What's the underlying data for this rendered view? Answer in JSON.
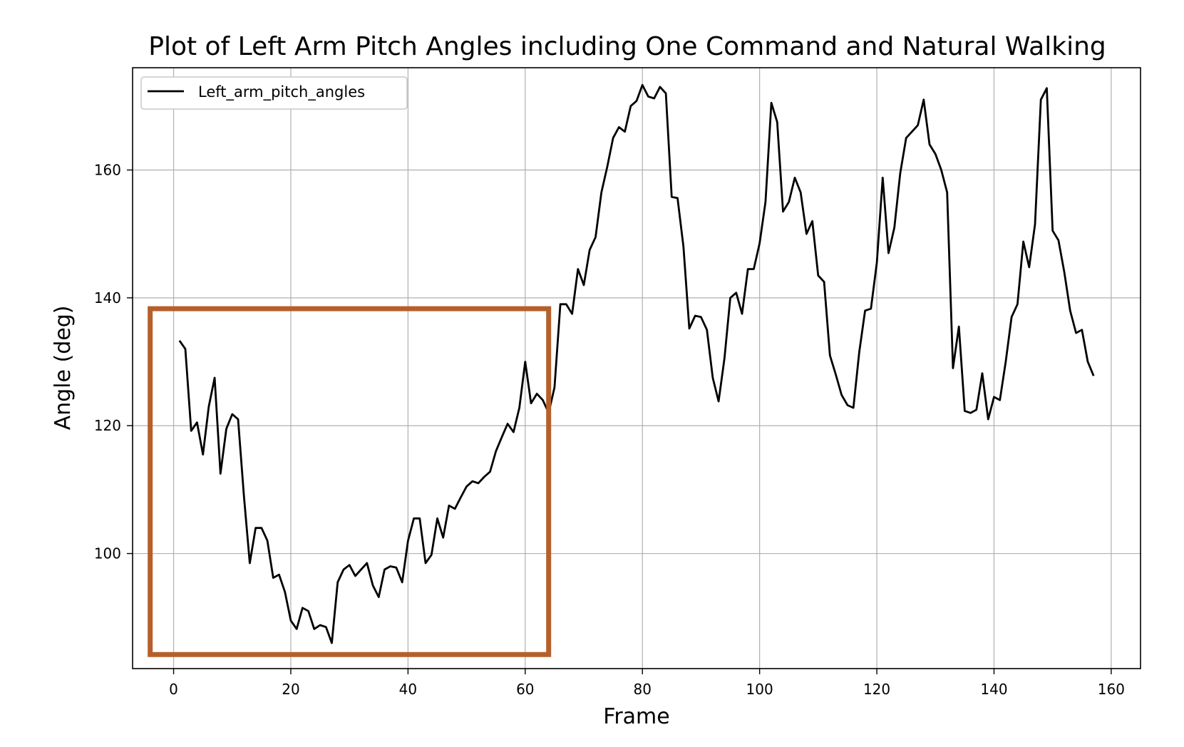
{
  "chart_data": {
    "type": "line",
    "title": "Plot of Left Arm Pitch Angles including One Command and Natural Walking",
    "xlabel": "Frame",
    "ylabel": "Angle (deg)",
    "xlim": [
      -7,
      165
    ],
    "ylim": [
      82,
      176
    ],
    "xticks": [
      0,
      20,
      40,
      60,
      80,
      100,
      120,
      140,
      160
    ],
    "yticks": [
      100,
      120,
      140,
      160
    ],
    "grid": true,
    "legend_position": "top-left",
    "series": [
      {
        "name": "Left_arm_pitch_angles",
        "color": "#000000",
        "x": [
          1,
          2,
          3,
          4,
          5,
          6,
          7,
          8,
          9,
          10,
          11,
          12,
          13,
          14,
          15,
          16,
          17,
          18,
          19,
          20,
          21,
          22,
          23,
          24,
          25,
          26,
          27,
          28,
          29,
          30,
          31,
          32,
          33,
          34,
          35,
          36,
          37,
          38,
          39,
          40,
          41,
          42,
          43,
          44,
          45,
          46,
          47,
          48,
          49,
          50,
          51,
          52,
          53,
          54,
          55,
          56,
          57,
          58,
          59,
          60,
          61,
          62,
          63,
          64,
          65,
          66,
          67,
          68,
          69,
          70,
          71,
          72,
          73,
          74,
          75,
          76,
          77,
          78,
          79,
          80,
          81,
          82,
          83,
          84,
          85,
          86,
          87,
          88,
          89,
          90,
          91,
          92,
          93,
          94,
          95,
          96,
          97,
          98,
          99,
          100,
          101,
          102,
          103,
          104,
          105,
          106,
          107,
          108,
          109,
          110,
          111,
          112,
          113,
          114,
          115,
          116,
          117,
          118,
          119,
          120,
          121,
          122,
          123,
          124,
          125,
          126,
          127,
          128,
          129,
          130,
          131,
          132,
          133,
          134,
          135,
          136,
          137,
          138,
          139,
          140,
          141,
          142,
          143,
          144,
          145,
          146,
          147,
          148,
          149,
          150,
          151,
          152,
          153,
          154,
          155,
          156,
          157
        ],
        "y": [
          133.3,
          132.0,
          119.2,
          120.5,
          115.5,
          123.0,
          127.5,
          112.5,
          119.5,
          121.8,
          121.0,
          109.0,
          98.5,
          104.0,
          104.0,
          102.0,
          96.2,
          96.7,
          94.0,
          89.5,
          88.2,
          91.5,
          91.0,
          88.2,
          88.8,
          88.5,
          86.0,
          95.5,
          97.5,
          98.2,
          96.5,
          97.5,
          98.5,
          95.0,
          93.2,
          97.5,
          98.0,
          97.8,
          95.5,
          102.0,
          105.5,
          105.5,
          98.5,
          99.8,
          105.5,
          102.5,
          107.5,
          107.0,
          108.8,
          110.5,
          111.3,
          111.0,
          112.0,
          112.8,
          116.0,
          118.2,
          120.3,
          119.0,
          122.8,
          130.0,
          123.5,
          125.0,
          124.0,
          122.0,
          126.0,
          139.0,
          139.0,
          137.5,
          144.5,
          142.0,
          147.5,
          149.5,
          156.5,
          160.5,
          165.0,
          166.7,
          166.0,
          170.0,
          170.8,
          173.3,
          171.5,
          171.2,
          173.0,
          172.0,
          155.8,
          155.6,
          148.0,
          135.2,
          137.2,
          137.0,
          135.0,
          127.5,
          123.8,
          130.5,
          140.0,
          140.8,
          137.5,
          144.5,
          144.5,
          148.5,
          155.0,
          170.5,
          167.5,
          153.5,
          155.0,
          158.8,
          156.5,
          150.0,
          152.0,
          143.5,
          142.5,
          131.0,
          128.0,
          124.8,
          123.2,
          122.8,
          131.5,
          138.0,
          138.3,
          145.5,
          158.8,
          147.0,
          151.0,
          159.5,
          165.0,
          166.0,
          167.0,
          171.0,
          164.0,
          162.5,
          160.0,
          156.5,
          129.0,
          135.5,
          122.3,
          122.0,
          122.5,
          128.2,
          121.0,
          124.5,
          124.0,
          130.0,
          137.0,
          139.0,
          148.8,
          144.8,
          151.5,
          171.0,
          172.8,
          150.5,
          149.0,
          144.0,
          138.0,
          134.5,
          135.0,
          130.0,
          127.8
        ]
      }
    ]
  },
  "annotation": {
    "highlight_x": [
      -4,
      64
    ],
    "highlight_y": [
      84.2,
      138.3
    ],
    "color": "#b5602c"
  }
}
